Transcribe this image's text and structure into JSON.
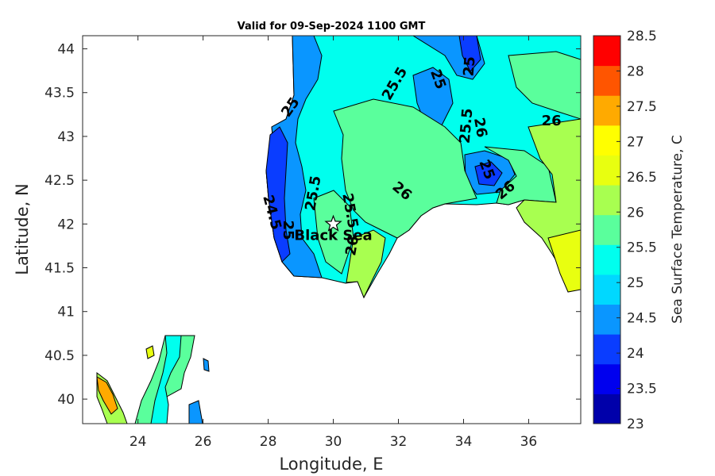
{
  "chart_data": {
    "type": "heatmap",
    "title": "Valid for 09-Sep-2024 1100 GMT",
    "xlabel": "Longitude, E",
    "ylabel": "Latitude, N",
    "xlim": [
      22.3,
      37.6
    ],
    "ylim": [
      39.72,
      44.15
    ],
    "x_ticks": [
      "24",
      "26",
      "28",
      "30",
      "32",
      "34",
      "36"
    ],
    "x_tick_values": [
      24,
      26,
      28,
      30,
      32,
      34,
      36
    ],
    "y_ticks": [
      "40",
      "40.5",
      "41",
      "41.5",
      "42",
      "42.5",
      "43",
      "43.5",
      "44"
    ],
    "y_tick_values": [
      40,
      40.5,
      41,
      41.5,
      42,
      42.5,
      43,
      43.5,
      44
    ],
    "colorbar": {
      "label": "Sea Surface Temperature, C",
      "range": [
        23,
        28.5
      ],
      "tick_labels": [
        "23",
        "23.5",
        "24",
        "24.5",
        "25",
        "25.5",
        "26",
        "26.5",
        "27",
        "27.5",
        "28",
        "28.5"
      ],
      "tick_values": [
        23,
        23.5,
        24,
        24.5,
        25,
        25.5,
        26,
        26.5,
        27,
        27.5,
        28,
        28.5
      ],
      "colors": [
        "#0000aa",
        "#0000ee",
        "#0a3dff",
        "#0a96ff",
        "#00d8ff",
        "#00ffee",
        "#5aff9c",
        "#a8ff50",
        "#e8ff10",
        "#ffff00",
        "#ffaa00",
        "#ff5500",
        "#ff0000"
      ]
    },
    "marker": {
      "name": "Black Sea",
      "lon": 30,
      "lat": 42,
      "symbol": "star"
    },
    "contour_labels": [
      {
        "text": "25.5",
        "lon": 31.9,
        "lat": 43.6,
        "angle": -60
      },
      {
        "text": "25",
        "lon": 33.2,
        "lat": 43.65,
        "angle": 70
      },
      {
        "text": "25",
        "lon": 34.2,
        "lat": 43.8,
        "angle": -85
      },
      {
        "text": "25",
        "lon": 28.7,
        "lat": 43.33,
        "angle": -55
      },
      {
        "text": "25.5",
        "lon": 34.1,
        "lat": 43.12,
        "angle": -85
      },
      {
        "text": "26",
        "lon": 34.5,
        "lat": 43.1,
        "angle": 80
      },
      {
        "text": "26",
        "lon": 36.7,
        "lat": 43.17,
        "angle": 0
      },
      {
        "text": "25",
        "lon": 34.7,
        "lat": 42.62,
        "angle": 70
      },
      {
        "text": "26",
        "lon": 35.3,
        "lat": 42.38,
        "angle": -40
      },
      {
        "text": "26",
        "lon": 32.1,
        "lat": 42.37,
        "angle": 40
      },
      {
        "text": "25.5",
        "lon": 29.4,
        "lat": 42.35,
        "angle": -80
      },
      {
        "text": "25.5",
        "lon": 30.5,
        "lat": 42.15,
        "angle": 80
      },
      {
        "text": "24.5",
        "lon": 28.1,
        "lat": 42.13,
        "angle": 75
      },
      {
        "text": "25",
        "lon": 28.6,
        "lat": 41.93,
        "angle": 90
      },
      {
        "text": "26",
        "lon": 30.6,
        "lat": 41.75,
        "angle": -80
      }
    ]
  }
}
